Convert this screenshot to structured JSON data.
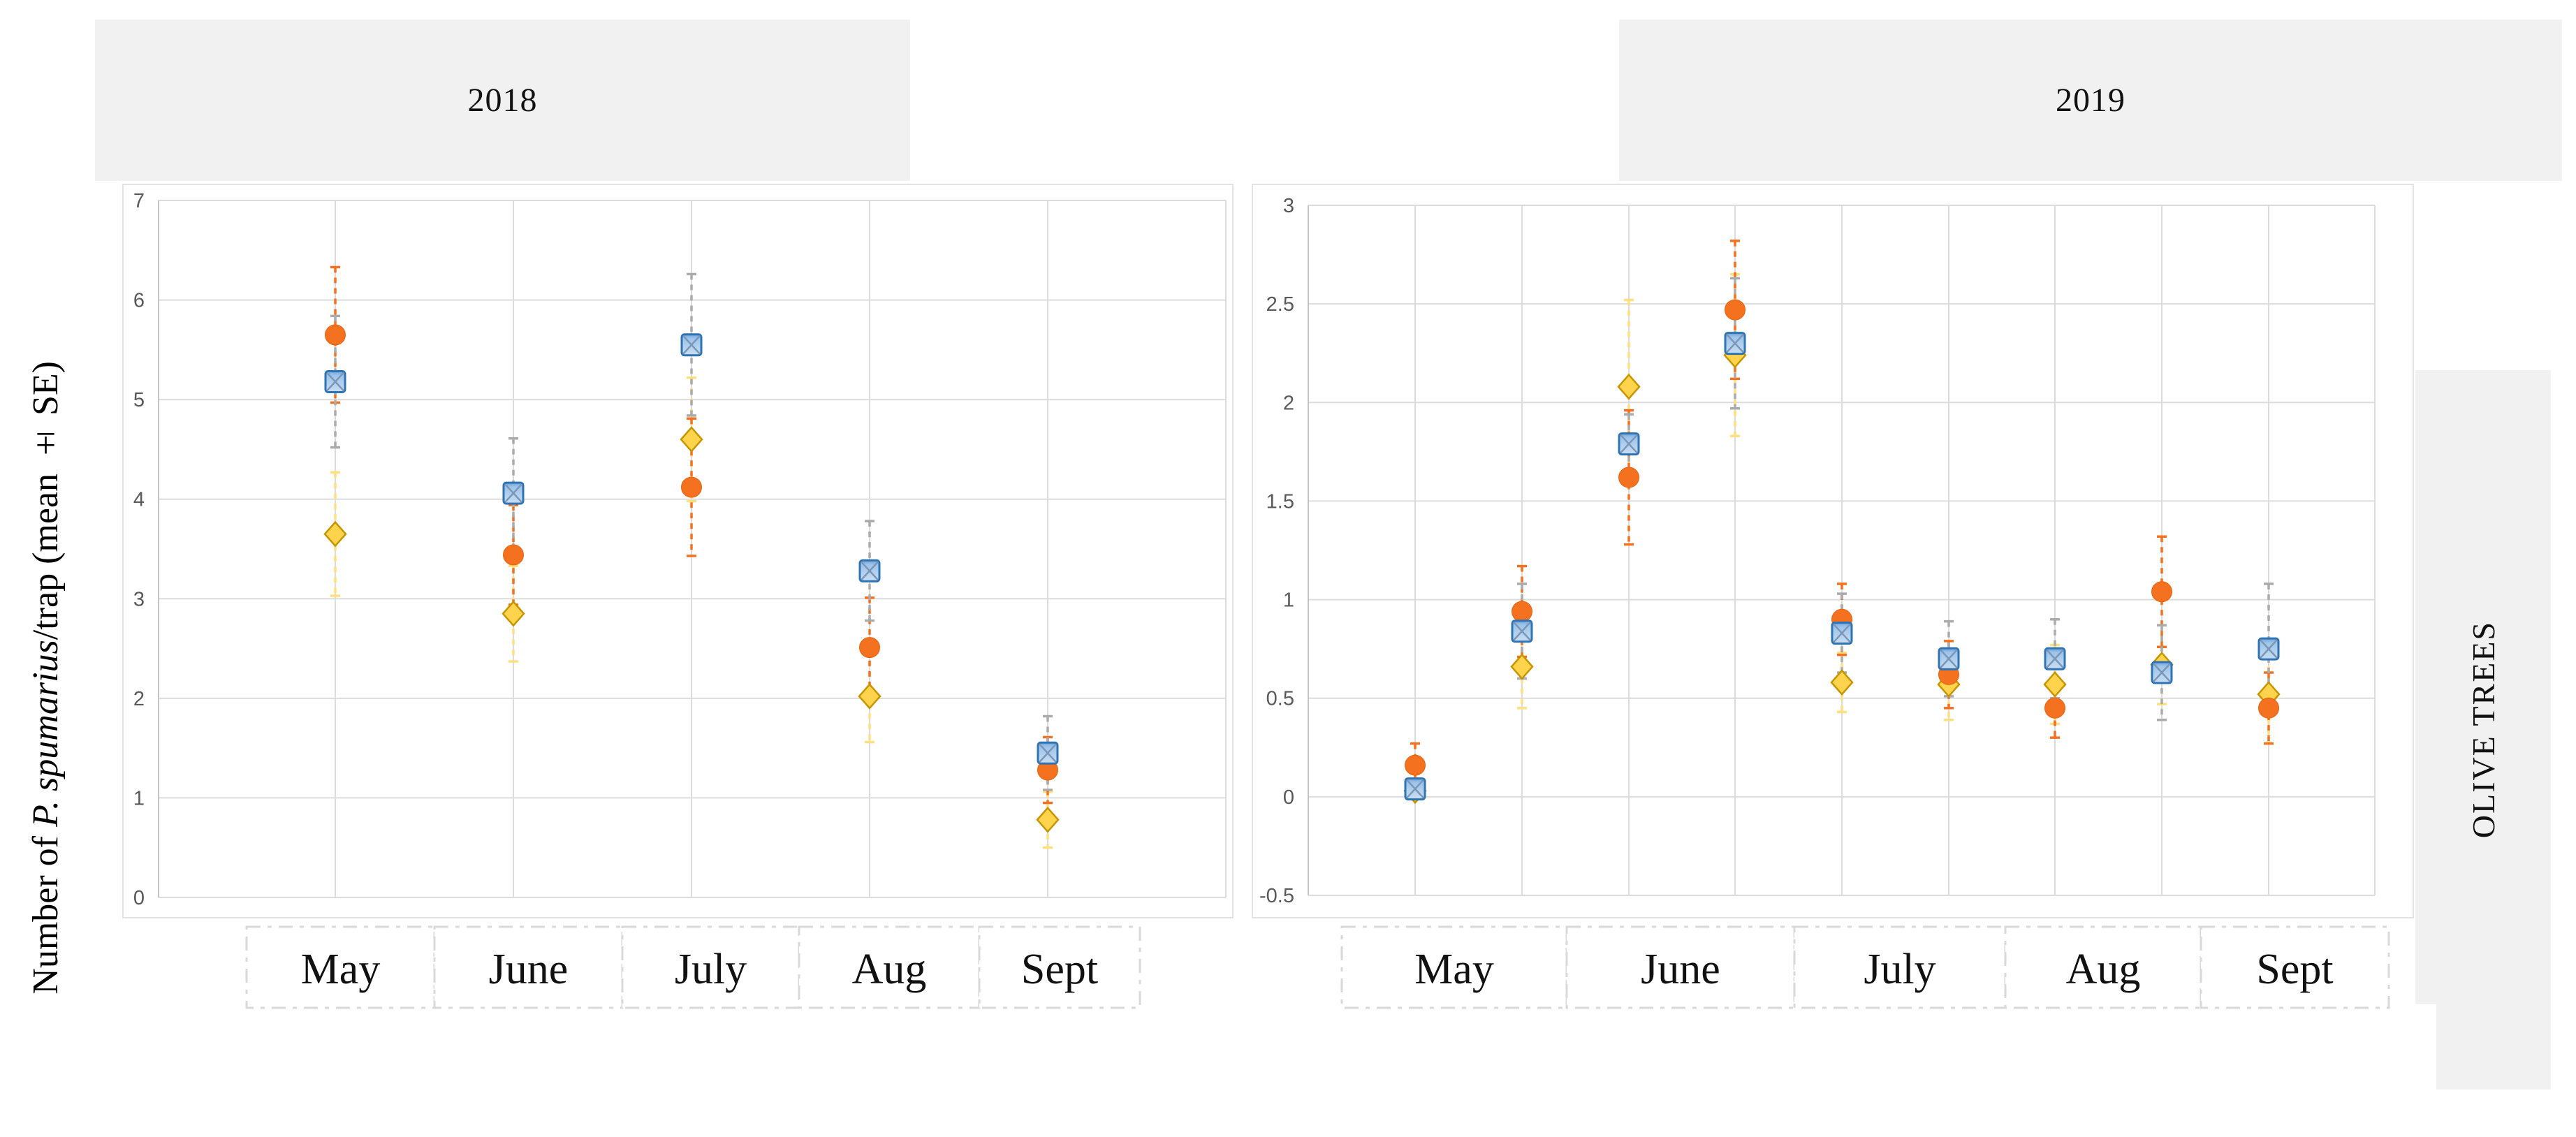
{
  "figure": {
    "y_axis_title": {
      "prefix": "Number of ",
      "species_italic": "P. spumarius",
      "suffix": "/trap (mean ± SE)"
    },
    "side_label": "OLIVE TREES"
  },
  "chart_data": [
    {
      "type": "scatter",
      "title": "2018",
      "ylabel": "Number of P. spumarius/trap (mean ± SE)",
      "xlabel": "",
      "ylim": [
        0,
        7
      ],
      "y_tick_step": 1,
      "y_tick_labels": [
        "7",
        "6",
        "5",
        "4",
        "3",
        "2",
        "1",
        "0"
      ],
      "grid": true,
      "legend": "none",
      "categories": [
        "May",
        "June",
        "July",
        "Aug",
        "Sept"
      ],
      "points_per_month": [
        1,
        1,
        1,
        1,
        1
      ],
      "series": [
        {
          "name": "yellow-diamond",
          "marker": "diamond",
          "color": "#FFD44C",
          "edge_color": "#C69500",
          "error_color": "#FFDF7E",
          "values": [
            3.65,
            2.85,
            4.6,
            2.02,
            0.78
          ],
          "se": [
            0.62,
            0.48,
            0.62,
            0.46,
            0.28
          ]
        },
        {
          "name": "orange-circle",
          "marker": "circle",
          "color": "#F4711F",
          "edge_color": "#E8630D",
          "error_color": "#F4711F",
          "values": [
            5.65,
            3.44,
            4.12,
            2.51,
            1.28
          ],
          "se": [
            0.68,
            0.5,
            0.69,
            0.5,
            0.33
          ]
        },
        {
          "name": "blue-square",
          "marker": "square",
          "color": "#A9CDED",
          "edge_color": "#2E74B5",
          "error_color": "#ABABAB",
          "values": [
            5.18,
            4.06,
            5.55,
            3.28,
            1.45
          ],
          "se": [
            0.66,
            0.55,
            0.71,
            0.5,
            0.37
          ]
        }
      ]
    },
    {
      "type": "scatter",
      "title": "2019",
      "ylabel": "Number of P. spumarius/trap (mean ± SE)",
      "xlabel": "",
      "ylim": [
        -0.5,
        3
      ],
      "y_tick_step": 0.5,
      "y_tick_labels": [
        "3",
        "2.5",
        "2",
        "1.5",
        "1",
        "0.5",
        "0",
        "-0.5"
      ],
      "grid": true,
      "legend": "none",
      "categories": [
        "May",
        "June",
        "July",
        "Aug",
        "Sept"
      ],
      "points_per_month": [
        2,
        2,
        2,
        2,
        1
      ],
      "series": [
        {
          "name": "yellow-diamond",
          "marker": "diamond",
          "color": "#FFD44C",
          "edge_color": "#C69500",
          "error_color": "#FFDF7E",
          "values": [
            0.03,
            0.66,
            2.08,
            2.24,
            0.58,
            0.57,
            0.57,
            0.67,
            0.52
          ],
          "se": [
            0.04,
            0.21,
            0.44,
            0.41,
            0.15,
            0.18,
            0.2,
            0.2,
            0.25
          ]
        },
        {
          "name": "orange-circle",
          "marker": "circle",
          "color": "#F4711F",
          "edge_color": "#E8630D",
          "error_color": "#F4711F",
          "values": [
            0.16,
            0.94,
            1.62,
            2.47,
            0.9,
            0.62,
            0.45,
            1.04,
            0.45
          ],
          "se": [
            0.11,
            0.23,
            0.34,
            0.35,
            0.18,
            0.17,
            0.15,
            0.28,
            0.18
          ]
        },
        {
          "name": "blue-square",
          "marker": "square",
          "color": "#A9CDED",
          "edge_color": "#2E74B5",
          "error_color": "#ABABAB",
          "values": [
            0.04,
            0.84,
            1.79,
            2.3,
            0.83,
            0.7,
            0.7,
            0.63,
            0.75
          ],
          "se": [
            0.05,
            0.24,
            0.15,
            0.33,
            0.2,
            0.19,
            0.2,
            0.24,
            0.33
          ]
        }
      ]
    }
  ]
}
